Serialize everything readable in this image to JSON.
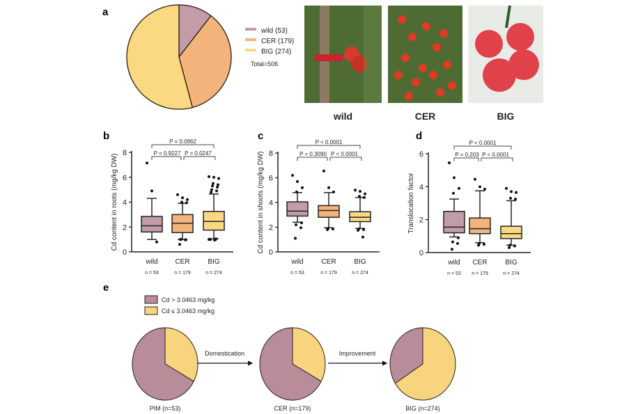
{
  "panel_labels": [
    "a",
    "b",
    "c",
    "d",
    "e"
  ],
  "colors": {
    "wild": "#c29ca8",
    "CER": "#f2b47a",
    "BIG": "#fad982",
    "high": "#b98c99",
    "low": "#f8d47e",
    "photo_bg": "#4e6b34",
    "tomato": "#d63a2c"
  },
  "chart_data": [
    {
      "panel": "a",
      "type": "pie",
      "slices": [
        {
          "label": "wild (53)",
          "value": 53,
          "color": "#c29ca8"
        },
        {
          "label": "CER (179)",
          "value": 179,
          "color": "#f2b47a"
        },
        {
          "label": "BIG (274)",
          "value": 274,
          "color": "#fad982"
        }
      ],
      "annotation": "Total=506"
    },
    {
      "panel": "b",
      "type": "box",
      "ylabel": "Cd content in roots (mg/kg DW)",
      "ylim": [
        0,
        8
      ],
      "yticks": [
        0,
        2,
        4,
        6,
        8
      ],
      "categories": [
        "wild",
        "CER",
        "BIG"
      ],
      "n_labels": [
        "n = 53",
        "n = 179",
        "n = 274"
      ],
      "boxes": [
        {
          "q1": 1.6,
          "median": 2.1,
          "q3": 2.85,
          "whisker_low": 1.0,
          "whisker_high": 4.3,
          "outliers": [
            7.15,
            4.9,
            0.8
          ]
        },
        {
          "q1": 1.55,
          "median": 2.3,
          "q3": 3.0,
          "whisker_low": 1.0,
          "whisker_high": 3.9,
          "outliers": [
            4.6,
            4.35,
            4.2,
            4.0,
            3.95,
            1.0,
            0.98,
            1.0,
            0.97,
            0.6
          ]
        },
        {
          "q1": 1.75,
          "median": 2.45,
          "q3": 3.25,
          "whisker_low": 1.05,
          "whisker_high": 4.65,
          "outliers": [
            6.05,
            6.0,
            5.9,
            5.5,
            5.4,
            5.3,
            5.2,
            5.0,
            4.9,
            4.8,
            1.05,
            1.0,
            0.98,
            1.02,
            0.95,
            1.0
          ]
        }
      ],
      "comparisons": [
        {
          "from": 0,
          "to": 2,
          "label": "P = 0.0962"
        },
        {
          "from": 0,
          "to": 1,
          "label": "P = 0.9227"
        },
        {
          "from": 1,
          "to": 2,
          "label": "P = 0.0247"
        }
      ]
    },
    {
      "panel": "c",
      "type": "box",
      "ylabel": "Cd content in shoots (mg/kg DW)",
      "ylim": [
        0,
        8
      ],
      "yticks": [
        0,
        2,
        4,
        6,
        8
      ],
      "categories": [
        "wild",
        "CER",
        "BIG"
      ],
      "n_labels": [
        "n = 53",
        "n = 179",
        "n = 274"
      ],
      "boxes": [
        {
          "q1": 2.9,
          "median": 3.3,
          "q3": 4.05,
          "whisker_low": 2.4,
          "whisker_high": 4.8,
          "outliers": [
            6.2,
            5.7,
            5.2,
            4.85,
            2.35,
            2.2,
            1.95,
            1.1
          ]
        },
        {
          "q1": 2.8,
          "median": 3.35,
          "q3": 3.75,
          "whisker_low": 1.95,
          "whisker_high": 4.8,
          "outliers": [
            6.55,
            5.2,
            4.85,
            1.9,
            1.85,
            1.8
          ]
        },
        {
          "q1": 2.45,
          "median": 2.8,
          "q3": 3.25,
          "whisker_low": 1.9,
          "whisker_high": 4.4,
          "outliers": [
            5.0,
            4.9,
            4.7,
            4.5,
            4.4,
            1.85,
            1.8,
            1.75,
            1.2
          ]
        }
      ],
      "comparisons": [
        {
          "from": 0,
          "to": 2,
          "label": "P < 0.0001"
        },
        {
          "from": 0,
          "to": 1,
          "label": "P = 0.3090"
        },
        {
          "from": 1,
          "to": 2,
          "label": "P < 0.0001"
        }
      ]
    },
    {
      "panel": "d",
      "type": "box",
      "ylabel": "Translocation factor",
      "ylim": [
        0,
        6
      ],
      "yticks": [
        0,
        2,
        4,
        6
      ],
      "categories": [
        "wild",
        "CER",
        "BIG"
      ],
      "n_labels": [
        "n = 53",
        "n = 179",
        "n = 274"
      ],
      "boxes": [
        {
          "q1": 1.2,
          "median": 1.55,
          "q3": 2.5,
          "whisker_low": 0.95,
          "whisker_high": 3.25,
          "outliers": [
            5.45,
            4.55,
            3.9,
            3.6,
            0.9,
            0.65,
            0.55,
            0.2
          ]
        },
        {
          "q1": 1.15,
          "median": 1.45,
          "q3": 2.1,
          "whisker_low": 0.6,
          "whisker_high": 3.75,
          "outliers": [
            4.45,
            4.0,
            3.85,
            0.55,
            0.5,
            0.45
          ]
        },
        {
          "q1": 0.85,
          "median": 1.15,
          "q3": 1.6,
          "whisker_low": 0.45,
          "whisker_high": 3.15,
          "outliers": [
            3.9,
            3.7,
            3.65,
            3.3,
            3.25,
            0.45,
            0.4,
            0.3
          ]
        }
      ],
      "comparisons": [
        {
          "from": 0,
          "to": 2,
          "label": "P < 0.0001"
        },
        {
          "from": 0,
          "to": 1,
          "label": "P = 0.203"
        },
        {
          "from": 1,
          "to": 2,
          "label": "P < 0.0001"
        }
      ]
    },
    {
      "panel": "e",
      "type": "pie",
      "legend": [
        {
          "label": "Cd > 3.0463 mg/kg",
          "color": "#b98c99"
        },
        {
          "label": "Cd ≤ 3.0463 mg/kg",
          "color": "#f8d47e"
        }
      ],
      "pies": [
        {
          "label": "PIM (n=53)",
          "low_fraction": 0.33,
          "high_fraction": 0.67
        },
        {
          "label": "CER (n=179)",
          "low_fraction": 0.33,
          "high_fraction": 0.67
        },
        {
          "label": "BIG (n=274)",
          "low_fraction": 0.66,
          "high_fraction": 0.34
        }
      ],
      "arrows": [
        "Domestication",
        "Improvement"
      ]
    }
  ],
  "photos": [
    {
      "label": "wild",
      "icon": "wild-tomato-photo"
    },
    {
      "label": "CER",
      "icon": "cherry-tomato-photo"
    },
    {
      "label": "BIG",
      "icon": "big-tomato-photo"
    }
  ]
}
